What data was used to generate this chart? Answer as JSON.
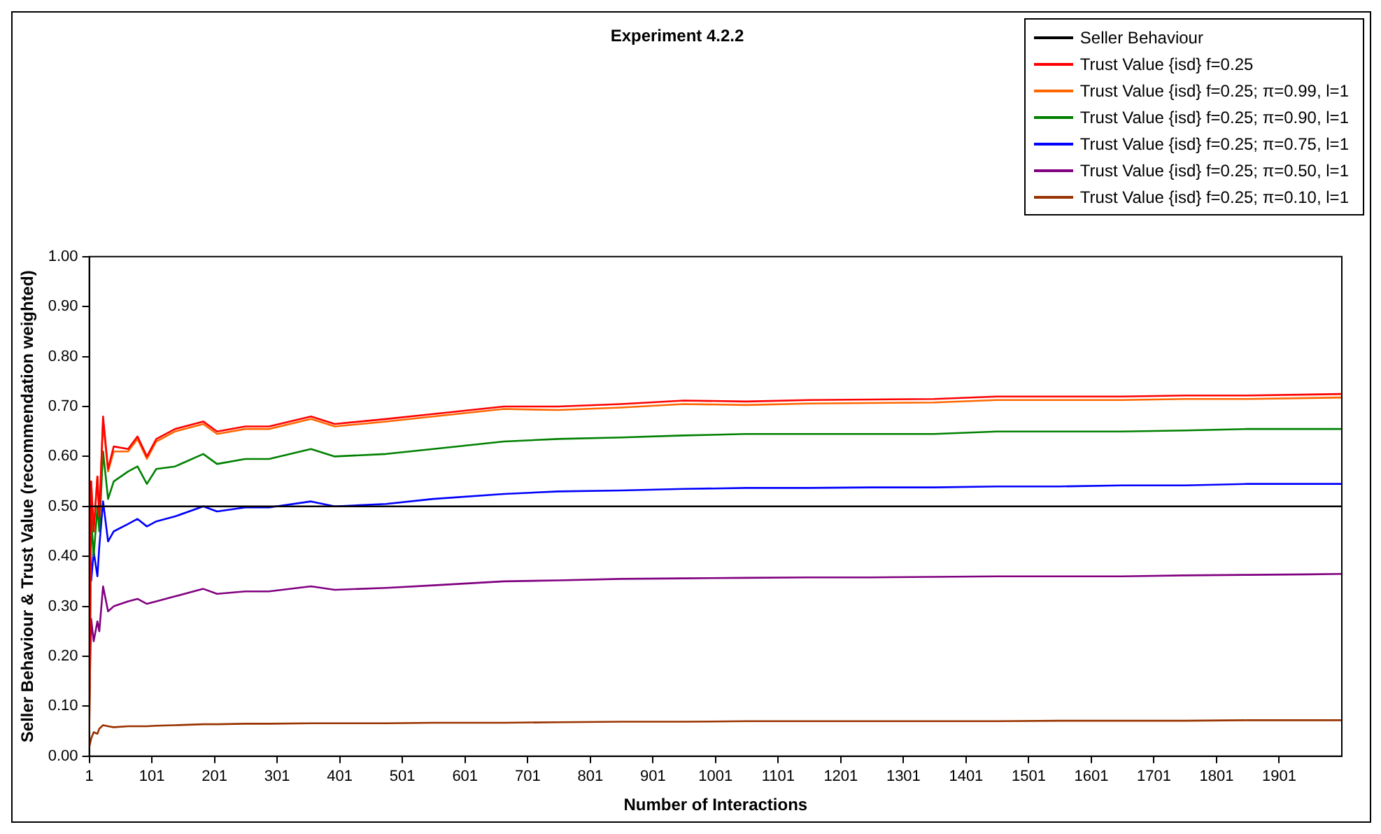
{
  "chart_data": {
    "type": "line",
    "title": "Experiment 4.2.2",
    "xlabel": "Number of Interactions",
    "ylabel": "Seller Behaviour & Trust Value (recommendation weighted)",
    "x": [
      1,
      4,
      8,
      14,
      17,
      23,
      31,
      40,
      63,
      78,
      93,
      108,
      138,
      183,
      205,
      250,
      288,
      355,
      393,
      475,
      550,
      663,
      750,
      850,
      950,
      1050,
      1150,
      1250,
      1350,
      1450,
      1550,
      1650,
      1750,
      1850,
      1950,
      2001
    ],
    "series": [
      {
        "name": "Seller Behaviour",
        "color": "#000000",
        "values": [
          0.5,
          0.5,
          0.5,
          0.5,
          0.5,
          0.5,
          0.5,
          0.5,
          0.5,
          0.5,
          0.5,
          0.5,
          0.5,
          0.5,
          0.5,
          0.5,
          0.5,
          0.5,
          0.5,
          0.5,
          0.5,
          0.5,
          0.5,
          0.5,
          0.5,
          0.5,
          0.5,
          0.5,
          0.5,
          0.5,
          0.5,
          0.5,
          0.5,
          0.5,
          0.5,
          0.5
        ]
      },
      {
        "name": "Trust Value {isd} f=0.25",
        "color": "#ff0000",
        "values": [
          0.05,
          0.55,
          0.45,
          0.56,
          0.48,
          0.68,
          0.575,
          0.62,
          0.615,
          0.64,
          0.6,
          0.635,
          0.655,
          0.67,
          0.65,
          0.66,
          0.66,
          0.68,
          0.665,
          0.675,
          0.685,
          0.7,
          0.7,
          0.705,
          0.712,
          0.71,
          0.713,
          0.714,
          0.715,
          0.72,
          0.72,
          0.72,
          0.722,
          0.722,
          0.724,
          0.725
        ]
      },
      {
        "name": "Trust Value {isd} f=0.25; π=0.99, l=1",
        "color": "#ff6600",
        "values": [
          0.05,
          0.55,
          0.45,
          0.56,
          0.48,
          0.67,
          0.57,
          0.61,
          0.61,
          0.635,
          0.595,
          0.63,
          0.65,
          0.665,
          0.645,
          0.655,
          0.655,
          0.675,
          0.66,
          0.67,
          0.68,
          0.695,
          0.693,
          0.698,
          0.705,
          0.703,
          0.706,
          0.707,
          0.708,
          0.713,
          0.713,
          0.713,
          0.715,
          0.715,
          0.717,
          0.718
        ]
      },
      {
        "name": "Trust Value {isd} f=0.25; π=0.90, l=1",
        "color": "#008000",
        "values": [
          0.05,
          0.48,
          0.4,
          0.5,
          0.45,
          0.61,
          0.515,
          0.55,
          0.57,
          0.58,
          0.545,
          0.575,
          0.58,
          0.605,
          0.585,
          0.595,
          0.595,
          0.615,
          0.6,
          0.605,
          0.615,
          0.63,
          0.635,
          0.638,
          0.642,
          0.645,
          0.645,
          0.645,
          0.645,
          0.65,
          0.65,
          0.65,
          0.652,
          0.655,
          0.655,
          0.655
        ]
      },
      {
        "name": "Trust Value {isd} f=0.25; π=0.75, l=1",
        "color": "#0000ff",
        "values": [
          null,
          0.35,
          0.41,
          0.36,
          0.42,
          0.51,
          0.43,
          0.45,
          0.465,
          0.475,
          0.46,
          0.47,
          0.48,
          0.5,
          0.49,
          0.498,
          0.498,
          0.51,
          0.5,
          0.505,
          0.515,
          0.525,
          0.53,
          0.532,
          0.535,
          0.537,
          0.537,
          0.538,
          0.538,
          0.54,
          0.54,
          0.542,
          0.542,
          0.545,
          0.545,
          0.545
        ]
      },
      {
        "name": "Trust Value {isd} f=0.25; π=0.50, l=1",
        "color": "#800080",
        "values": [
          0.1,
          0.275,
          0.23,
          0.27,
          0.25,
          0.34,
          0.29,
          0.3,
          0.31,
          0.315,
          0.305,
          0.31,
          0.32,
          0.335,
          0.325,
          0.33,
          0.33,
          0.34,
          0.333,
          0.337,
          0.342,
          0.35,
          0.352,
          0.355,
          0.356,
          0.357,
          0.358,
          0.358,
          0.359,
          0.36,
          0.36,
          0.36,
          0.362,
          0.363,
          0.364,
          0.365
        ]
      },
      {
        "name": "Trust Value {isd} f=0.25; π=0.10, l=1",
        "color": "#993300",
        "values": [
          0.018,
          0.035,
          0.048,
          0.045,
          0.055,
          0.062,
          0.06,
          0.058,
          0.06,
          0.06,
          0.06,
          0.061,
          0.062,
          0.064,
          0.064,
          0.065,
          0.065,
          0.066,
          0.066,
          0.066,
          0.067,
          0.067,
          0.068,
          0.069,
          0.069,
          0.07,
          0.07,
          0.07,
          0.07,
          0.07,
          0.071,
          0.071,
          0.071,
          0.072,
          0.072,
          0.072
        ]
      }
    ],
    "xlim": [
      1,
      2001
    ],
    "xticks": [
      1,
      101,
      201,
      301,
      401,
      501,
      601,
      701,
      801,
      901,
      1001,
      1101,
      1201,
      1301,
      1401,
      1501,
      1601,
      1701,
      1801,
      1901
    ],
    "ylim": [
      0,
      1
    ],
    "yticks": [
      {
        "value": 0,
        "label": "0.00"
      },
      {
        "value": 0.1,
        "label": "0.10"
      },
      {
        "value": 0.2,
        "label": "0.20"
      },
      {
        "value": 0.3,
        "label": "0.30"
      },
      {
        "value": 0.4,
        "label": "0.40"
      },
      {
        "value": 0.5,
        "label": "0.50"
      },
      {
        "value": 0.6,
        "label": "0.60"
      },
      {
        "value": 0.7,
        "label": "0.70"
      },
      {
        "value": 0.8,
        "label": "0.80"
      },
      {
        "value": 0.9,
        "label": "0.90"
      },
      {
        "value": 1,
        "label": "1.00"
      }
    ],
    "legend": "top right",
    "marker": "none",
    "line_style": "solid"
  }
}
